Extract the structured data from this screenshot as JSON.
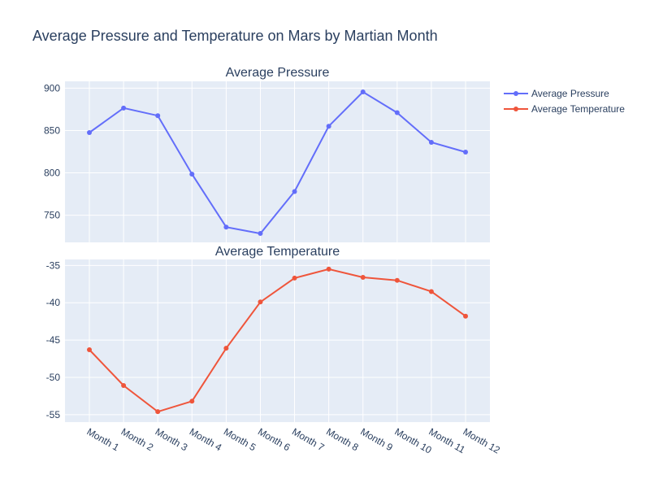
{
  "chart_data": {
    "type": "line",
    "title": "Average Pressure and Temperature on Mars by Martian Month",
    "categories": [
      "Month 1",
      "Month 2",
      "Month 3",
      "Month 4",
      "Month 5",
      "Month 6",
      "Month 7",
      "Month 8",
      "Month 9",
      "Month 10",
      "Month 11",
      "Month 12"
    ],
    "grid": true,
    "legend_position": "top-right",
    "subplots": [
      {
        "subtitle": "Average Pressure",
        "ylim": [
          718,
          908
        ],
        "yticks": [
          750,
          800,
          850,
          900
        ],
        "series": [
          {
            "name": "Average Pressure",
            "color": "#636efa",
            "values": [
              847.5,
              876.5,
              867.5,
              798.5,
              736.0,
              728.5,
              778.0,
              855.0,
              895.5,
              871.0,
              836.0,
              824.5
            ]
          }
        ]
      },
      {
        "subtitle": "Average Temperature",
        "ylim": [
          -56.0,
          -34.2
        ],
        "yticks": [
          -55,
          -50,
          -45,
          -40,
          -35
        ],
        "series": [
          {
            "name": "Average Temperature",
            "color": "#ef553b",
            "values": [
              -46.3,
              -51.1,
              -54.6,
              -53.2,
              -46.1,
              -39.9,
              -36.7,
              -35.5,
              -36.6,
              -37.0,
              -38.5,
              -41.8
            ]
          }
        ]
      }
    ]
  }
}
